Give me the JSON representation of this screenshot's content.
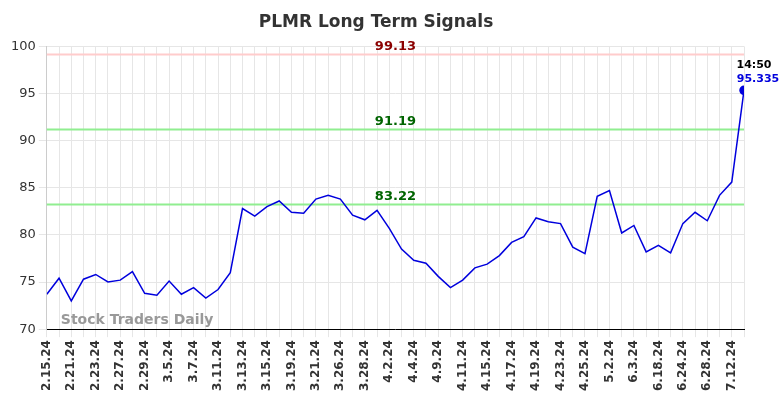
{
  "chart_data": {
    "type": "line",
    "title": "PLMR Long Term Signals",
    "categories": [
      "2.15.24",
      null,
      "2.21.24",
      null,
      "2.23.24",
      null,
      "2.27.24",
      null,
      "2.29.24",
      null,
      "3.5.24",
      null,
      "3.7.24",
      null,
      "3.11.24",
      null,
      "3.13.24",
      null,
      "3.15.24",
      null,
      "3.19.24",
      null,
      "3.21.24",
      null,
      "3.26.24",
      null,
      "3.28.24",
      null,
      "4.2.24",
      null,
      "4.4.24",
      null,
      "4.9.24",
      null,
      "4.11.24",
      null,
      "4.15.24",
      null,
      "4.17.24",
      null,
      "4.19.24",
      null,
      "4.23.24",
      null,
      "4.25.24",
      null,
      "5.2.24",
      null,
      "6.3.24",
      null,
      "6.18.24",
      null,
      "6.24.24",
      null,
      "6.28.24",
      null,
      "7.12.24",
      null
    ],
    "values": [
      73.7,
      75.4,
      73.0,
      75.3,
      75.8,
      75.0,
      75.2,
      76.1,
      73.8,
      73.6,
      75.1,
      73.7,
      74.4,
      73.3,
      74.2,
      76.0,
      82.8,
      82.0,
      83.0,
      83.6,
      82.4,
      82.3,
      83.8,
      84.2,
      83.8,
      82.1,
      81.6,
      82.6,
      80.7,
      78.5,
      77.3,
      77.0,
      75.6,
      74.4,
      75.2,
      76.5,
      76.9,
      77.8,
      79.2,
      79.8,
      81.8,
      81.4,
      81.2,
      78.7,
      78.0,
      84.1,
      84.7,
      80.2,
      81.0,
      78.2,
      78.9,
      78.1,
      81.2,
      82.4,
      81.5,
      84.2,
      85.6,
      95.335
    ],
    "color": "#0000dd",
    "ylim": [
      70,
      100
    ],
    "yticks": [
      70,
      75,
      80,
      85,
      90,
      95,
      100
    ],
    "grid": true,
    "reference_lines": [
      {
        "value": 99.13,
        "color": "#ffcccc",
        "label_color": "#8b0000"
      },
      {
        "value": 91.19,
        "color": "#90ee90",
        "label_color": "#006400"
      },
      {
        "value": 83.22,
        "color": "#90ee90",
        "label_color": "#006400"
      }
    ],
    "last_point_time": "14:50",
    "watermark": "Stock Traders Daily"
  }
}
